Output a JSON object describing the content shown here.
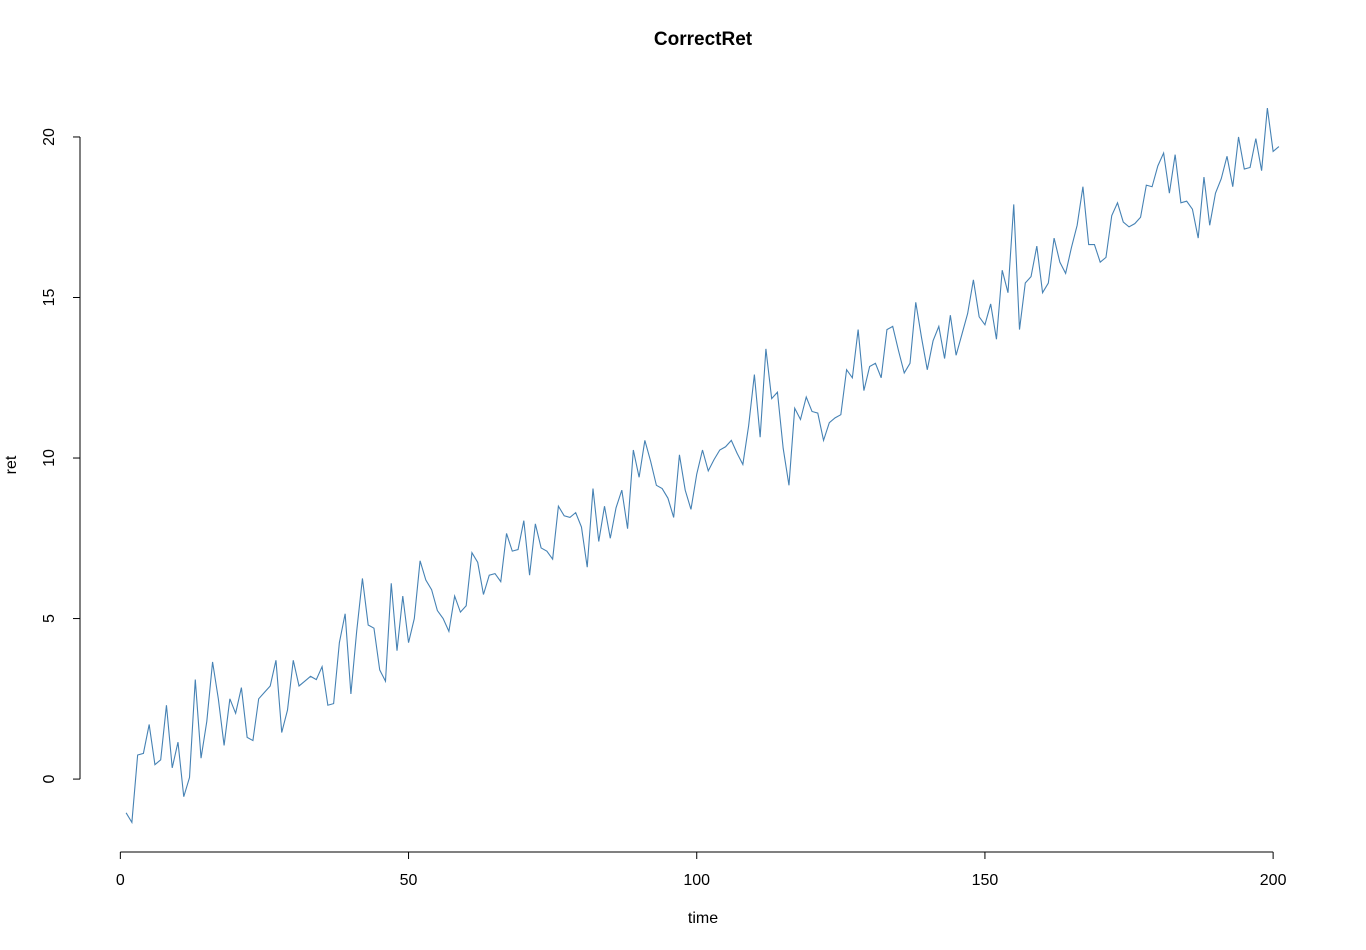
{
  "chart_data": {
    "type": "line",
    "title": "CorrectRet",
    "xlabel": "time",
    "ylabel": "ret",
    "color": "#4682b4",
    "x": [
      1,
      2,
      3,
      4,
      5,
      6,
      7,
      8,
      9,
      10,
      11,
      12,
      13,
      14,
      15,
      16,
      17,
      18,
      19,
      20,
      21,
      22,
      23,
      24,
      25,
      26,
      27,
      28,
      29,
      30,
      31,
      32,
      33,
      34,
      35,
      36,
      37,
      38,
      39,
      40,
      41,
      42,
      43,
      44,
      45,
      46,
      47,
      48,
      49,
      50,
      51,
      52,
      53,
      54,
      55,
      56,
      57,
      58,
      59,
      60,
      61,
      62,
      63,
      64,
      65,
      66,
      67,
      68,
      69,
      70,
      71,
      72,
      73,
      74,
      75,
      76,
      77,
      78,
      79,
      80,
      81,
      82,
      83,
      84,
      85,
      86,
      87,
      88,
      89,
      90,
      91,
      92,
      93,
      94,
      95,
      96,
      97,
      98,
      99,
      100,
      101,
      102,
      103,
      104,
      105,
      106,
      107,
      108,
      109,
      110,
      111,
      112,
      113,
      114,
      115,
      116,
      117,
      118,
      119,
      120,
      121,
      122,
      123,
      124,
      125,
      126,
      127,
      128,
      129,
      130,
      131,
      132,
      133,
      134,
      135,
      136,
      137,
      138,
      139,
      140,
      141,
      142,
      143,
      144,
      145,
      146,
      147,
      148,
      149,
      150,
      151,
      152,
      153,
      154,
      155,
      156,
      157,
      158,
      159,
      160,
      161,
      162,
      163,
      164,
      165,
      166,
      167,
      168,
      169,
      170,
      171,
      172,
      173,
      174,
      175,
      176,
      177,
      178,
      179,
      180,
      181,
      182,
      183,
      184,
      185,
      186,
      187,
      188,
      189,
      190,
      191,
      192,
      193,
      194,
      195,
      196,
      197,
      198,
      199,
      200,
      201
    ],
    "values": [
      -1.05,
      -1.35,
      0.75,
      0.8,
      1.7,
      0.45,
      0.6,
      2.3,
      0.35,
      1.15,
      -0.55,
      0.05,
      3.1,
      0.65,
      1.8,
      3.65,
      2.5,
      1.05,
      2.5,
      2.05,
      2.85,
      1.3,
      1.2,
      2.5,
      2.7,
      2.9,
      3.7,
      1.45,
      2.15,
      3.7,
      2.9,
      3.05,
      3.2,
      3.1,
      3.5,
      2.3,
      2.35,
      4.25,
      5.15,
      2.65,
      4.6,
      6.25,
      4.8,
      4.7,
      3.4,
      3.05,
      6.1,
      4.0,
      5.7,
      4.25,
      5.0,
      6.8,
      6.2,
      5.9,
      5.25,
      5.0,
      4.6,
      5.7,
      5.2,
      5.4,
      7.05,
      6.75,
      5.75,
      6.35,
      6.4,
      6.15,
      7.65,
      7.1,
      7.15,
      8.05,
      6.35,
      7.95,
      7.2,
      7.1,
      6.85,
      8.5,
      8.2,
      8.15,
      8.3,
      7.85,
      6.6,
      9.05,
      7.4,
      8.5,
      7.5,
      8.45,
      9.0,
      7.8,
      10.25,
      9.4,
      10.55,
      9.9,
      9.15,
      9.05,
      8.75,
      8.15,
      10.1,
      9.0,
      8.4,
      9.5,
      10.25,
      9.6,
      9.95,
      10.25,
      10.35,
      10.55,
      10.15,
      9.8,
      11.0,
      12.6,
      10.65,
      13.4,
      11.85,
      12.05,
      10.3,
      9.15,
      11.55,
      11.2,
      11.9,
      11.45,
      11.4,
      10.55,
      11.1,
      11.25,
      11.35,
      12.75,
      12.5,
      14.0,
      12.1,
      12.85,
      12.95,
      12.5,
      14.0,
      14.1,
      13.35,
      12.65,
      12.95,
      14.85,
      13.75,
      12.75,
      13.65,
      14.1,
      13.1,
      14.45,
      13.2,
      13.85,
      14.5,
      15.55,
      14.4,
      14.15,
      14.8,
      13.7,
      15.85,
      15.15,
      17.9,
      14.0,
      15.45,
      15.65,
      16.6,
      15.15,
      15.45,
      16.85,
      16.1,
      15.75,
      16.55,
      17.25,
      18.45,
      16.65,
      16.65,
      16.1,
      16.25,
      17.55,
      17.95,
      17.35,
      17.2,
      17.3,
      17.5,
      18.5,
      18.45,
      19.1,
      19.5,
      18.25,
      19.45,
      17.95,
      18.0,
      17.75,
      16.85,
      18.75,
      17.25,
      18.25,
      18.7,
      19.4,
      18.45,
      20.0,
      19.0,
      19.05,
      19.95,
      18.95,
      20.9,
      19.55,
      19.7
    ],
    "xlim": [
      -7,
      209
    ],
    "ylim": [
      -2.24,
      21.79
    ],
    "xticks": [
      0,
      50,
      100,
      150,
      200
    ],
    "yticks": [
      0,
      5,
      10,
      15,
      20
    ]
  }
}
